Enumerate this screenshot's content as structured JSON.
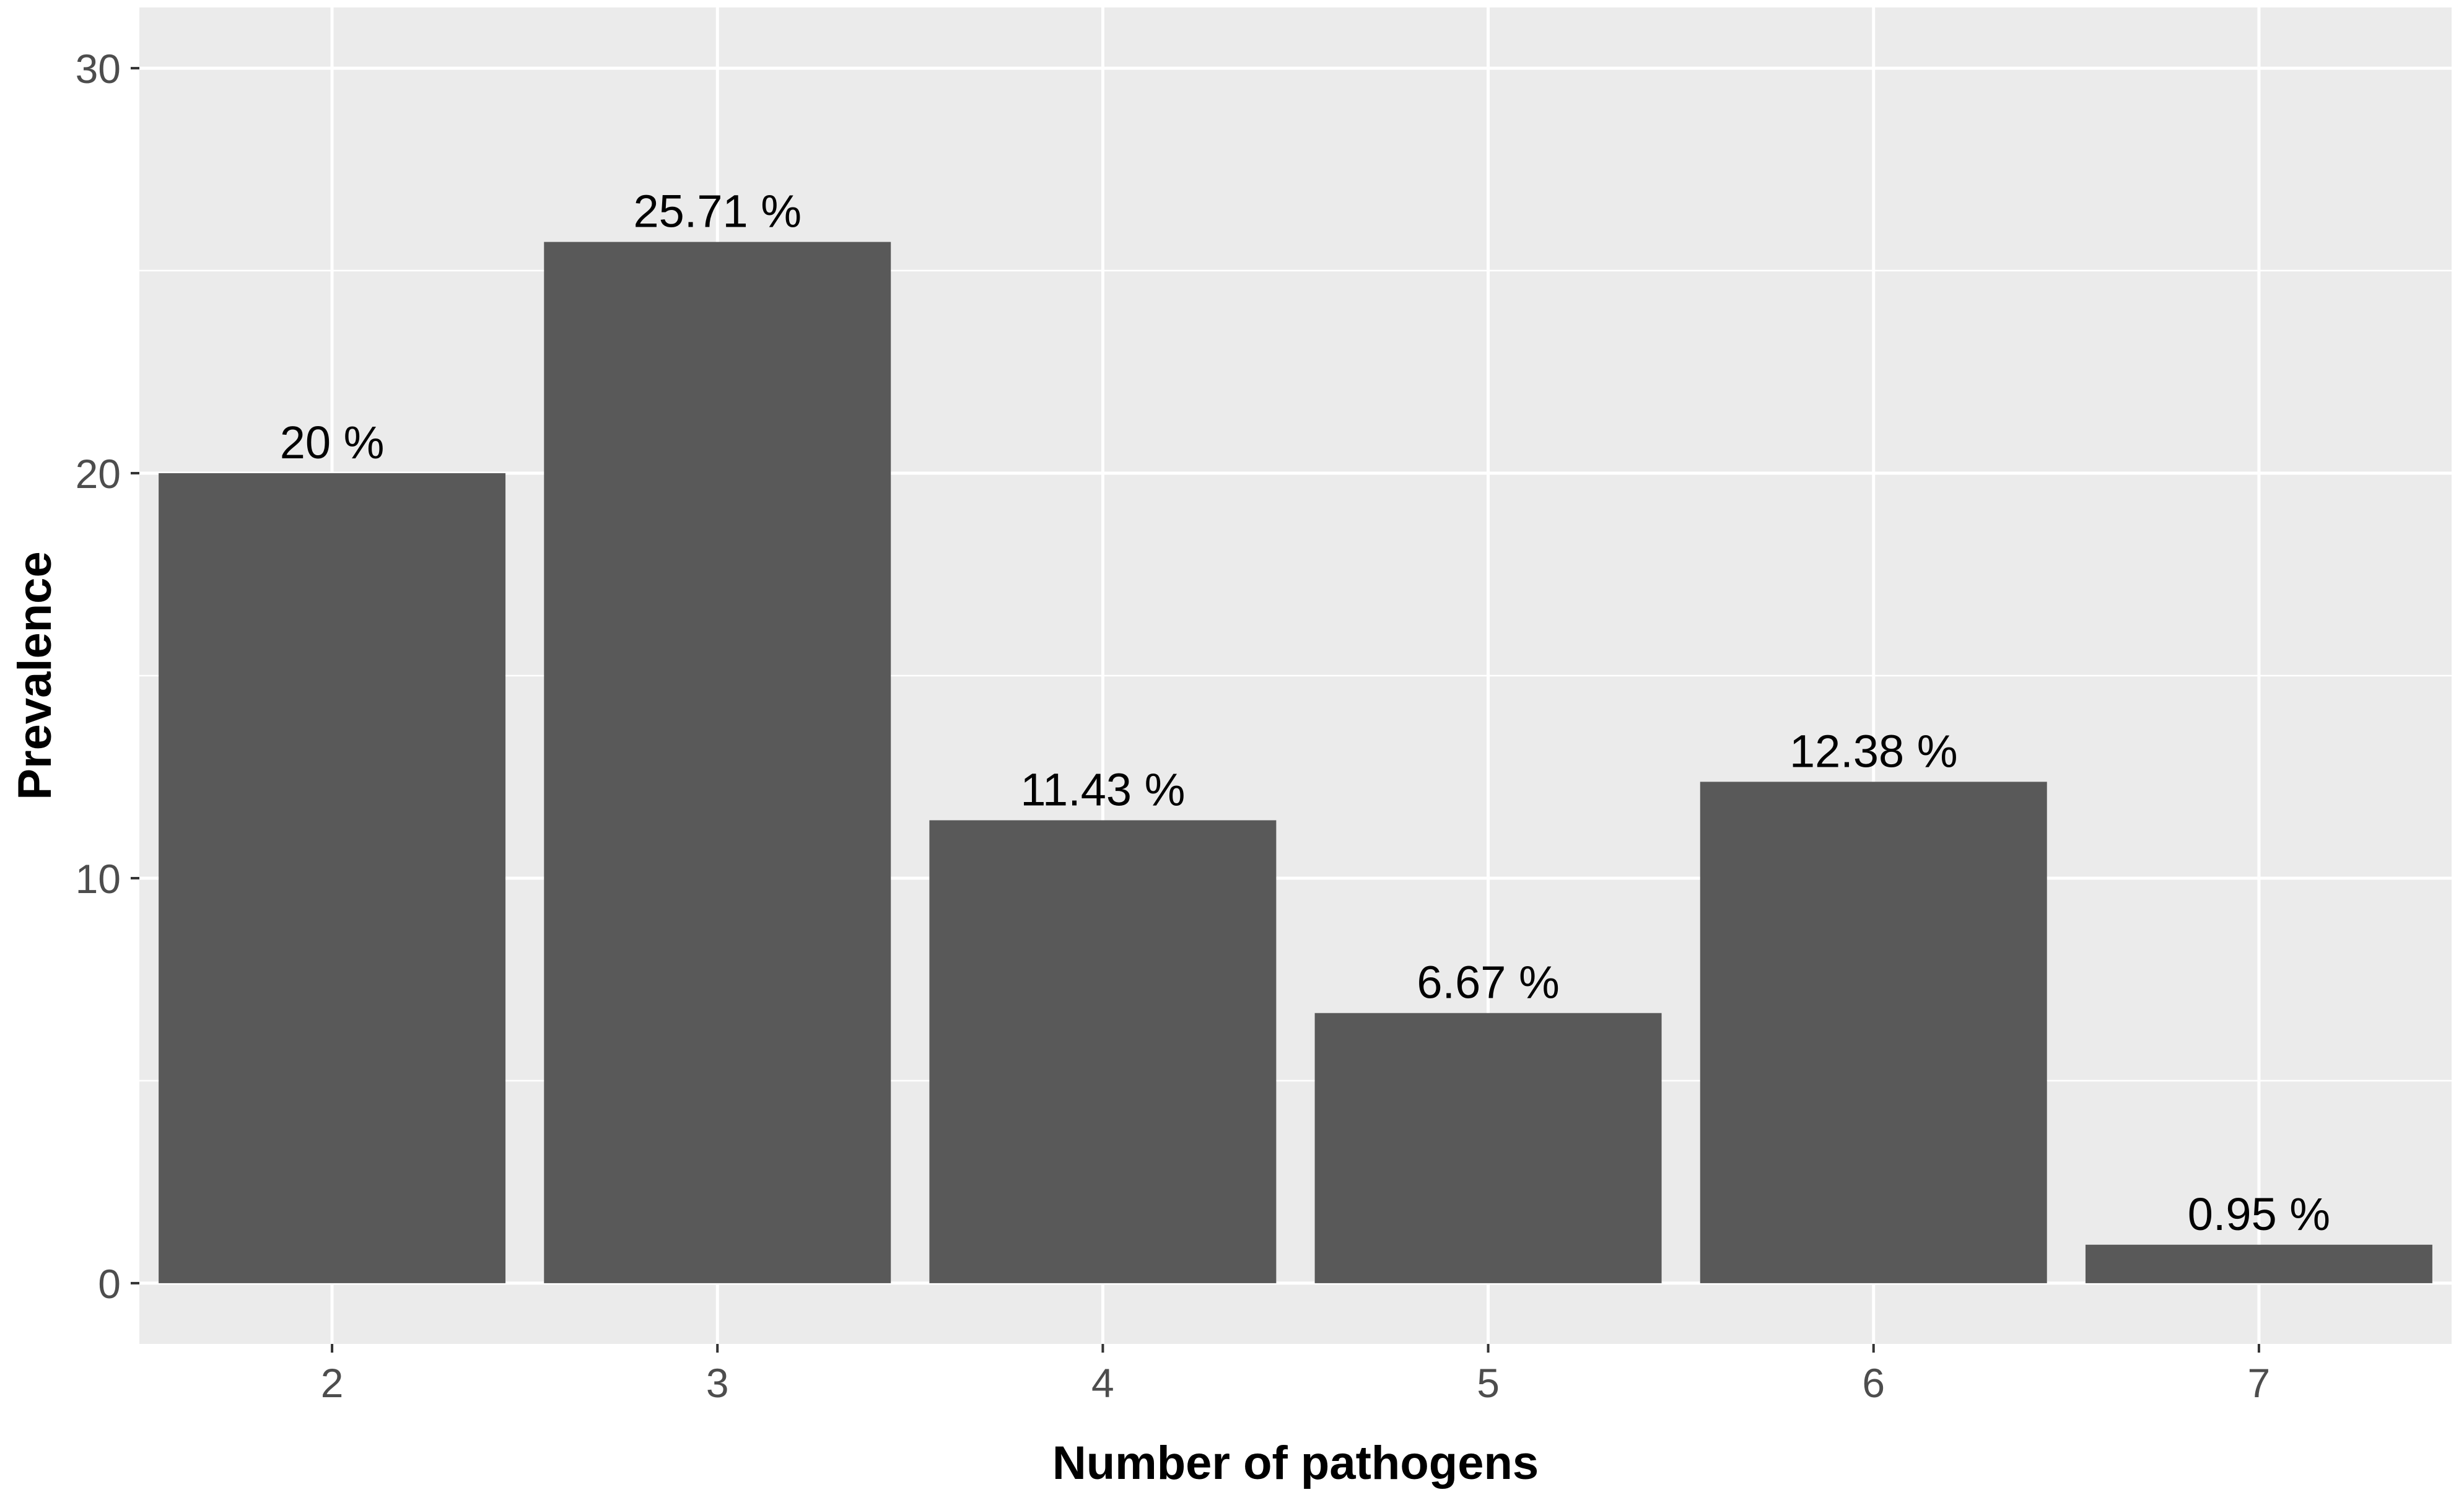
{
  "chart_data": {
    "type": "bar",
    "categories": [
      "2",
      "3",
      "4",
      "5",
      "6",
      "7"
    ],
    "values": [
      20,
      25.71,
      11.43,
      6.67,
      12.38,
      0.95
    ],
    "data_labels": [
      "20 %",
      "25.71 %",
      "11.43 %",
      "6.67 %",
      "12.38 %",
      "0.95 %"
    ],
    "xlabel": "Number of pathogens",
    "ylabel": "Prevalence",
    "ylim": [
      -1.5,
      31.5
    ],
    "yticks": [
      0,
      10,
      20,
      30
    ],
    "ytick_labels": [
      "0",
      "10",
      "20",
      "30"
    ],
    "grid": true,
    "colors": {
      "bar": "#595959",
      "panel": "#ebebeb",
      "grid": "#ffffff",
      "tick_text": "#4d4d4d",
      "tick_mark": "#333333"
    }
  }
}
